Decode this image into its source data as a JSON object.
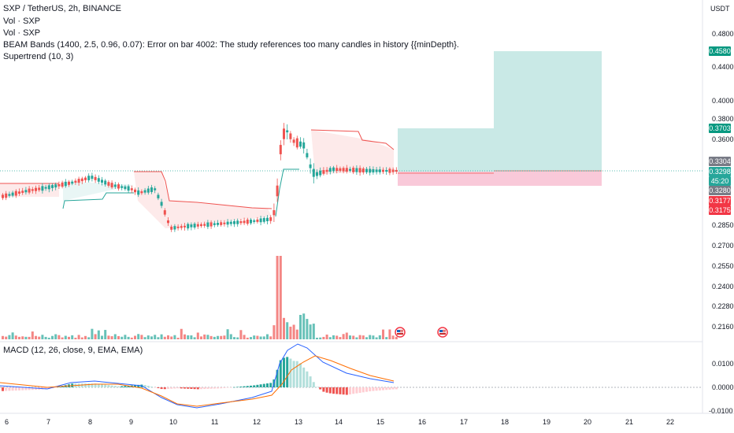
{
  "legend": {
    "title": "SXP / TetherUS, 2h, BINANCE",
    "vol1": "Vol · SXP",
    "vol2": "Vol · SXP",
    "beam": "BEAM Bands (1400, 2.5, 0.96, 0.07): Error on bar 4002: The study references too many candles in history {{minDepth}.",
    "supertrend": "Supertrend (10, 3)",
    "macd": "MACD (12, 26, close, 9, EMA, EMA)"
  },
  "price_axis": {
    "currency": "USDT",
    "ticks": [
      "0.4800",
      "0.4400",
      "0.4000",
      "0.3800",
      "0.3600",
      "0.2850",
      "0.2700",
      "0.2550",
      "0.2400",
      "0.2280",
      "0.2160"
    ],
    "tags": [
      {
        "text": "0.4580",
        "color": "#089981"
      },
      {
        "text": "0.3703",
        "color": "#089981"
      },
      {
        "text": "0.3304",
        "color": "#787b86"
      },
      {
        "text": "0.3298",
        "color": "#26a69a"
      },
      {
        "text": "45:20",
        "color": "#26a69a"
      },
      {
        "text": "0.3280",
        "color": "#787b86"
      },
      {
        "text": "0.3177",
        "color": "#f23645"
      },
      {
        "text": "0.3175",
        "color": "#f23645"
      }
    ]
  },
  "macd_axis": {
    "ticks": [
      "0.0100",
      "0.0000",
      "-0.0100"
    ]
  },
  "time_axis": {
    "labels": [
      "6",
      "7",
      "8",
      "9",
      "10",
      "11",
      "12",
      "13",
      "14",
      "15",
      "16",
      "17",
      "18",
      "19",
      "20",
      "21",
      "22"
    ]
  },
  "colors": {
    "up": "#26a69a",
    "down": "#ef5350",
    "macd": "#2962ff",
    "signal": "#ff6d00",
    "profit": "#b2dfdb",
    "loss": "#f8bbd0"
  },
  "icons": {
    "event1": "us-flag-icon",
    "event2": "us-flag-icon"
  }
}
